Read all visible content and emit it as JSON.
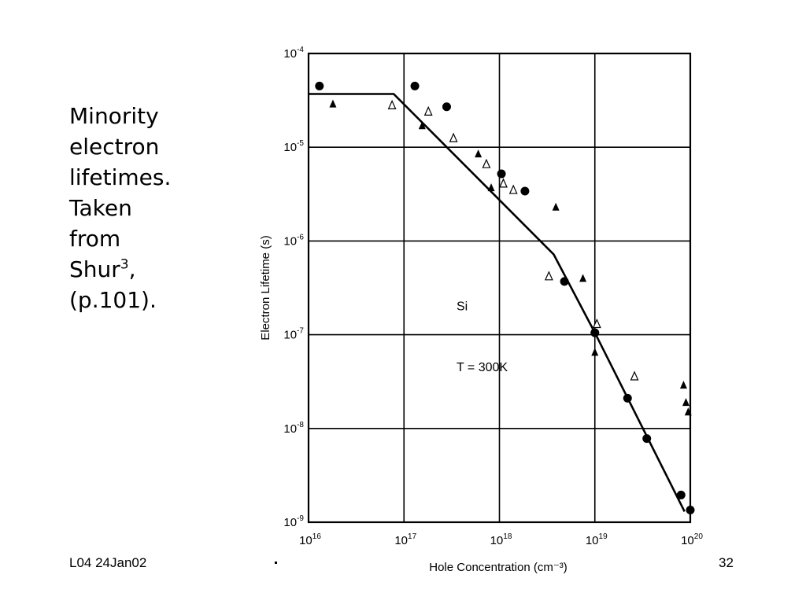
{
  "caption": {
    "line1": "Minority",
    "line2": "electron",
    "line3": "lifetimes.",
    "line4": "Taken",
    "line5": "from",
    "line6_text": "Shur",
    "line6_sup": "3",
    "line6_suffix": ",",
    "line7": "(p.101)."
  },
  "footer": {
    "left": "L04 24Jan02",
    "right": "32"
  },
  "chart_data": {
    "type": "scatter",
    "xscale": "log",
    "yscale": "log",
    "xlim": [
      1e+16,
      1e+20
    ],
    "ylim": [
      1e-09,
      0.0001
    ],
    "grid": true,
    "xlabel": "Hole Concentration (cm⁻³)",
    "ylabel": "Electron Lifetime (s)",
    "xticks": [
      {
        "base": "10",
        "exp": "16"
      },
      {
        "base": "10",
        "exp": "17"
      },
      {
        "base": "10",
        "exp": "18"
      },
      {
        "base": "10",
        "exp": "19"
      },
      {
        "base": "10",
        "exp": "20"
      }
    ],
    "yticks": [
      {
        "base": "10",
        "exp": "-9"
      },
      {
        "base": "10",
        "exp": "-8"
      },
      {
        "base": "10",
        "exp": "-7"
      },
      {
        "base": "10",
        "exp": "-6"
      },
      {
        "base": "10",
        "exp": "-5"
      },
      {
        "base": "10",
        "exp": "-4"
      }
    ],
    "annotations": [
      {
        "text": "Si",
        "x": 5e+17,
        "y": 2e-07
      },
      {
        "text": "T = 300K",
        "x": 5e+17,
        "y": 4.5e-08
      }
    ],
    "fit_line": {
      "x": [
        1e+16,
        7.8e+16,
        3.7e+18,
        1e+19,
        8.7e+19
      ],
      "y": [
        3.7e-05,
        3.7e-05,
        7.2e-07,
        1.05e-07,
        1.3e-09
      ]
    },
    "series": [
      {
        "marker": "filled-circle",
        "points": [
          [
            1.3e+16,
            4.5e-05
          ],
          [
            1.3e+17,
            4.5e-05
          ],
          [
            2.8e+17,
            2.7e-05
          ],
          [
            1.05e+18,
            5.2e-06
          ],
          [
            1.85e+18,
            3.4e-06
          ],
          [
            4.8e+18,
            3.7e-07
          ],
          [
            1e+19,
            1.05e-07
          ],
          [
            2.2e+19,
            2.1e-08
          ],
          [
            3.5e+19,
            7.8e-09
          ],
          [
            8e+19,
            1.95e-09
          ],
          [
            1e+20,
            1.35e-09
          ]
        ]
      },
      {
        "marker": "filled-triangle",
        "points": [
          [
            1.8e+16,
            2.9e-05
          ],
          [
            1.55e+17,
            1.7e-05
          ],
          [
            6e+17,
            8.5e-06
          ],
          [
            8.2e+17,
            3.7e-06
          ],
          [
            3.9e+18,
            2.3e-06
          ],
          [
            7.5e+18,
            4e-07
          ],
          [
            1e+19,
            6.5e-08
          ],
          [
            8.5e+19,
            2.9e-08
          ],
          [
            9e+19,
            1.9e-08
          ],
          [
            9.5e+19,
            1.5e-08
          ]
        ]
      },
      {
        "marker": "open-triangle",
        "points": [
          [
            7.5e+16,
            2.8e-05
          ],
          [
            1.8e+17,
            2.4e-05
          ],
          [
            3.3e+17,
            1.25e-05
          ],
          [
            7.3e+17,
            6.6e-06
          ],
          [
            1.1e+18,
            4.1e-06
          ],
          [
            1.4e+18,
            3.5e-06
          ],
          [
            3.3e+18,
            4.2e-07
          ],
          [
            1.05e+19,
            1.3e-07
          ],
          [
            2.6e+19,
            3.6e-08
          ]
        ]
      }
    ]
  }
}
